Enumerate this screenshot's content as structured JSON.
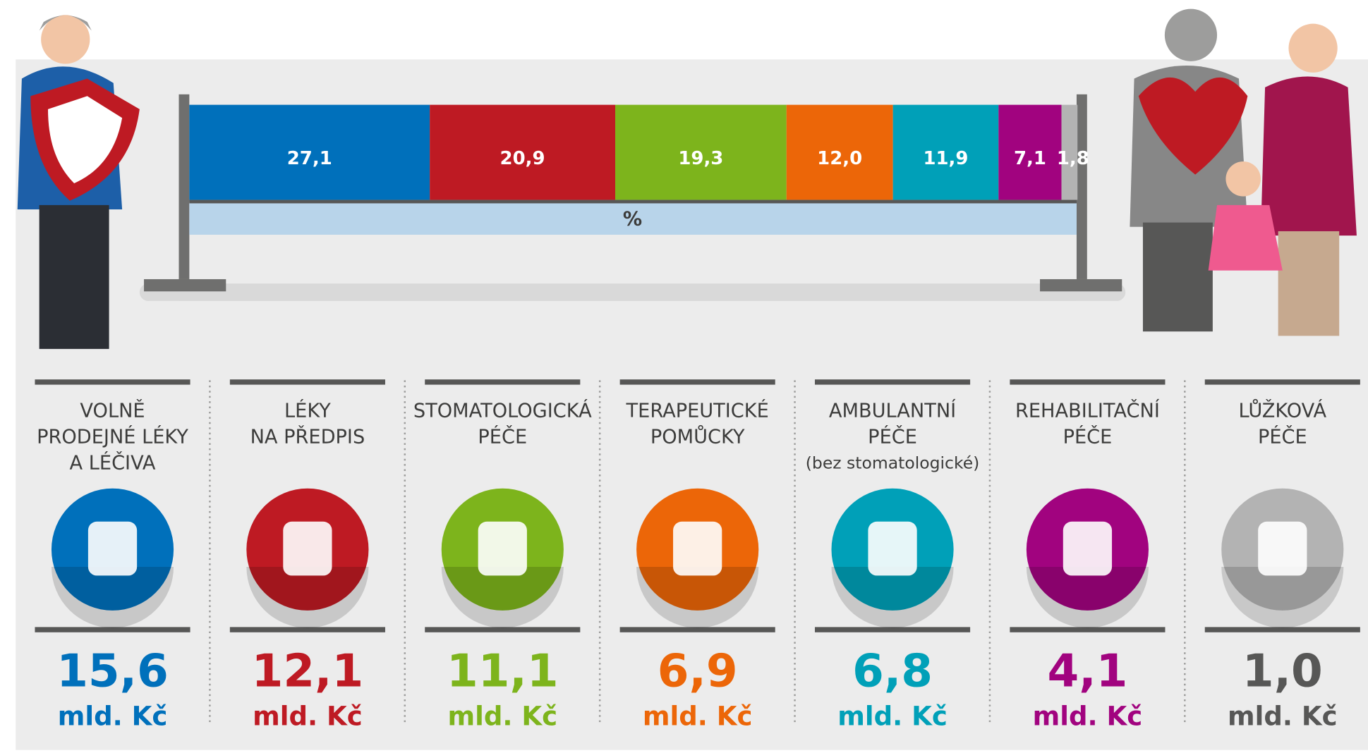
{
  "chart_data": {
    "type": "stacked-bar",
    "xlim": [
      0,
      100
    ],
    "unit_label": "%",
    "values": [
      27.1,
      20.9,
      19.3,
      12.0,
      11.9,
      7.1,
      1.8
    ],
    "value_labels": [
      "27,1",
      "20,9",
      "19,3",
      "12,0",
      "11,9",
      "7,1",
      "1,8"
    ],
    "colors": [
      "#0070bb",
      "#be1a23",
      "#7db41c",
      "#ec6608",
      "#00a0b8",
      "#a1037f",
      "#b3b3b3"
    ],
    "categories": [
      [
        "VOLNĚ",
        "PRODEJNÉ LÉKY",
        "A LÉČIVA"
      ],
      [
        "LÉKY",
        "NA PŘEDPIS"
      ],
      [
        "STOMATOLOGICKÁ",
        "PÉČE"
      ],
      [
        "TERAPEUTICKÉ",
        "POMŮCKY"
      ],
      [
        "AMBULANTNÍ",
        "PÉČE",
        "(bez stomatologické)"
      ],
      [
        "REHABILITAČNÍ",
        "PÉČE"
      ],
      [
        "LŮŽKOVÁ",
        "PÉČE"
      ]
    ],
    "amounts": [
      15.6,
      12.1,
      11.1,
      6.9,
      6.8,
      4.1,
      1.0
    ],
    "amount_labels": [
      "15,6",
      "12,1",
      "11,1",
      "6,9",
      "6,8",
      "4,1",
      "1,0"
    ],
    "amount_unit": "mld. Kč",
    "amount_colors": [
      "#0070bb",
      "#be1a23",
      "#7db41c",
      "#ec6608",
      "#00a0b8",
      "#a1037f",
      "#575756"
    ]
  }
}
